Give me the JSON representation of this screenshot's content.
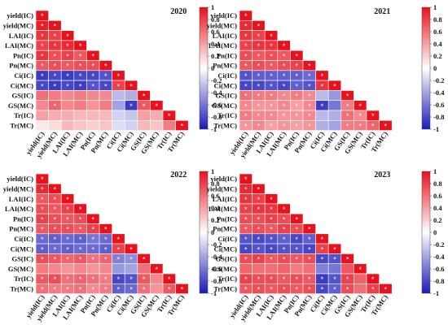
{
  "chart_data": [
    {
      "type": "heatmap",
      "title": "2020",
      "labels": [
        "yield(IC)",
        "yield(MC)",
        "LAI(IC)",
        "LAI(MC)",
        "Pn(IC)",
        "Pn(MC)",
        "Ci(IC)",
        "Ci(MC)",
        "GS(IC)",
        "GS(MC)",
        "Tr(IC)",
        "Tr(MC)"
      ],
      "values": [
        [
          1
        ],
        [
          0.95,
          1
        ],
        [
          0.85,
          0.8,
          1
        ],
        [
          0.8,
          0.85,
          0.9,
          1
        ],
        [
          0.85,
          0.75,
          0.8,
          0.7,
          1
        ],
        [
          0.7,
          0.75,
          0.7,
          0.75,
          0.75,
          1
        ],
        [
          -0.85,
          -0.8,
          -0.85,
          -0.8,
          -0.8,
          -0.75,
          1
        ],
        [
          -0.8,
          -0.85,
          -0.8,
          -0.85,
          -0.75,
          -0.8,
          0.8,
          1
        ],
        [
          0.6,
          0.55,
          0.5,
          0.55,
          0.5,
          0.5,
          -0.3,
          -0.35,
          1
        ],
        [
          0.5,
          0.65,
          0.5,
          0.55,
          0.45,
          0.55,
          -0.4,
          -0.85,
          0.7,
          1
        ],
        [
          0.4,
          0.35,
          0.35,
          0.3,
          0.3,
          0.3,
          -0.2,
          -0.25,
          0.4,
          0.35,
          1
        ],
        [
          0.1,
          0.15,
          0.3,
          0.25,
          0.2,
          0.25,
          -0.15,
          -0.2,
          0.3,
          0.25,
          0.55,
          1
        ]
      ],
      "significant": [
        [
          1
        ],
        [
          1,
          1
        ],
        [
          1,
          1,
          1
        ],
        [
          1,
          1,
          1,
          1
        ],
        [
          1,
          1,
          1,
          1,
          1
        ],
        [
          1,
          1,
          1,
          1,
          1,
          1
        ],
        [
          1,
          1,
          1,
          1,
          1,
          1,
          1
        ],
        [
          1,
          1,
          1,
          1,
          1,
          1,
          1,
          1
        ],
        [
          0,
          0,
          0,
          0,
          0,
          0,
          0,
          0,
          1
        ],
        [
          0,
          1,
          0,
          0,
          0,
          0,
          0,
          1,
          1,
          1
        ],
        [
          0,
          0,
          0,
          0,
          0,
          0,
          0,
          0,
          0,
          0,
          1
        ],
        [
          0,
          0,
          0,
          0,
          0,
          0,
          0,
          0,
          0,
          0,
          0,
          1
        ]
      ],
      "colorbar": {
        "min": -1,
        "max": 1
      }
    },
    {
      "type": "heatmap",
      "title": "2021",
      "labels": [
        "yield(IC)",
        "yield(MC)",
        "LAI(IC)",
        "LAI(MC)",
        "Pn(IC)",
        "Pn(MC)",
        "Ci(IC)",
        "Ci(MC)",
        "GS(IC)",
        "GS(MC)",
        "Tr(IC)",
        "Tr(MC)"
      ],
      "values": [
        [
          1
        ],
        [
          0.9,
          1
        ],
        [
          0.85,
          0.8,
          1
        ],
        [
          0.8,
          0.85,
          0.85,
          1
        ],
        [
          0.75,
          0.7,
          0.75,
          0.7,
          1
        ],
        [
          0.7,
          0.75,
          0.7,
          0.75,
          0.8,
          1
        ],
        [
          -0.75,
          -0.7,
          -0.7,
          -0.7,
          -0.7,
          -0.65,
          1
        ],
        [
          -0.8,
          -0.8,
          -0.75,
          -0.8,
          -0.7,
          -0.75,
          0.85,
          1
        ],
        [
          0.6,
          0.55,
          0.55,
          0.5,
          0.55,
          0.5,
          -0.3,
          -0.45,
          1
        ],
        [
          0.5,
          0.45,
          0.45,
          0.5,
          0.4,
          0.5,
          -0.85,
          -0.6,
          0.55,
          1
        ],
        [
          0.55,
          0.5,
          0.5,
          0.45,
          0.45,
          0.5,
          -0.3,
          -0.35,
          0.6,
          0.5,
          1
        ],
        [
          0.45,
          0.5,
          0.4,
          0.45,
          0.4,
          0.45,
          -0.35,
          -0.4,
          0.55,
          0.55,
          0.65,
          1
        ]
      ],
      "significant": [
        [
          1
        ],
        [
          1,
          1
        ],
        [
          1,
          1,
          1
        ],
        [
          1,
          1,
          1,
          1
        ],
        [
          1,
          1,
          1,
          1,
          1
        ],
        [
          1,
          1,
          1,
          1,
          1,
          1
        ],
        [
          1,
          1,
          1,
          1,
          1,
          1,
          1
        ],
        [
          1,
          1,
          1,
          1,
          1,
          1,
          1,
          1
        ],
        [
          1,
          1,
          1,
          1,
          1,
          1,
          0,
          0,
          1
        ],
        [
          1,
          1,
          1,
          1,
          1,
          1,
          1,
          0,
          1,
          1
        ],
        [
          1,
          1,
          1,
          1,
          1,
          1,
          0,
          0,
          1,
          1,
          1
        ],
        [
          1,
          1,
          1,
          1,
          1,
          1,
          0,
          0,
          1,
          1,
          1,
          1
        ]
      ],
      "colorbar": {
        "min": -1,
        "max": 1
      }
    },
    {
      "type": "heatmap",
      "title": "2022",
      "labels": [
        "yield(IC)",
        "yield(MC)",
        "LAI(IC)",
        "LAI(MC)",
        "Pn(IC)",
        "Pn(MC)",
        "Ci(IC)",
        "Ci(MC)",
        "GS(IC)",
        "GS(MC)",
        "Tr(IC)",
        "Tr(MC)"
      ],
      "values": [
        [
          1
        ],
        [
          0.9,
          1
        ],
        [
          0.7,
          0.75,
          1
        ],
        [
          0.75,
          0.7,
          0.8,
          1
        ],
        [
          0.8,
          0.75,
          0.7,
          0.75,
          1
        ],
        [
          0.7,
          0.75,
          0.75,
          0.7,
          0.8,
          1
        ],
        [
          -0.65,
          -0.7,
          -0.65,
          -0.7,
          -0.6,
          -0.65,
          1
        ],
        [
          -0.7,
          -0.65,
          -0.7,
          -0.65,
          -0.65,
          -0.7,
          0.8,
          1
        ],
        [
          0.75,
          0.7,
          0.65,
          0.7,
          0.6,
          0.65,
          -0.55,
          -0.5,
          1
        ],
        [
          0.55,
          0.5,
          0.45,
          0.5,
          0.45,
          0.5,
          -0.45,
          -0.4,
          0.6,
          1
        ],
        [
          0.7,
          0.75,
          0.6,
          0.65,
          0.6,
          0.55,
          -0.8,
          -0.75,
          0.7,
          0.5,
          1
        ],
        [
          0.6,
          0.55,
          0.55,
          0.6,
          0.5,
          0.55,
          -0.7,
          -0.65,
          0.6,
          0.45,
          0.7,
          1
        ]
      ],
      "significant": [
        [
          1
        ],
        [
          1,
          1
        ],
        [
          1,
          1,
          1
        ],
        [
          1,
          1,
          1,
          1
        ],
        [
          1,
          1,
          1,
          1,
          1
        ],
        [
          1,
          1,
          1,
          1,
          1,
          1
        ],
        [
          1,
          1,
          1,
          1,
          1,
          1,
          1
        ],
        [
          1,
          1,
          1,
          1,
          1,
          1,
          1,
          1
        ],
        [
          1,
          1,
          1,
          1,
          1,
          1,
          1,
          1,
          1
        ],
        [
          0,
          0,
          0,
          0,
          0,
          0,
          0,
          0,
          0,
          1
        ],
        [
          1,
          1,
          1,
          1,
          1,
          1,
          1,
          1,
          1,
          0,
          1
        ],
        [
          1,
          1,
          1,
          1,
          1,
          1,
          1,
          1,
          1,
          0,
          1,
          1
        ]
      ],
      "colorbar": {
        "min": -1,
        "max": 1
      }
    },
    {
      "type": "heatmap",
      "title": "2023",
      "labels": [
        "yield(IC)",
        "yield(MC)",
        "LAI(IC)",
        "LAI(MC)",
        "Pn(IC)",
        "Pn(MC)",
        "Ci(IC)",
        "Ci(MC)",
        "GS(IC)",
        "GS(MC)",
        "Tr(IC)",
        "Tr(MC)"
      ],
      "values": [
        [
          1
        ],
        [
          0.9,
          1
        ],
        [
          0.85,
          0.8,
          1
        ],
        [
          0.8,
          0.85,
          0.85,
          1
        ],
        [
          0.75,
          0.75,
          0.8,
          0.75,
          1
        ],
        [
          0.7,
          0.75,
          0.7,
          0.8,
          0.75,
          1
        ],
        [
          -0.75,
          -0.8,
          -0.75,
          -0.7,
          -0.8,
          -0.7,
          1
        ],
        [
          -0.8,
          -0.75,
          -0.8,
          -0.75,
          -0.75,
          -0.8,
          0.8,
          1
        ],
        [
          0.75,
          0.8,
          0.7,
          0.75,
          0.7,
          0.75,
          -0.8,
          -0.75,
          1
        ],
        [
          0.65,
          0.6,
          0.6,
          0.65,
          0.55,
          0.6,
          -0.55,
          -0.6,
          0.7,
          1
        ],
        [
          0.8,
          0.75,
          0.75,
          0.7,
          0.75,
          0.7,
          -0.85,
          -0.75,
          0.8,
          0.65,
          1
        ],
        [
          0.7,
          0.75,
          0.7,
          0.75,
          0.7,
          0.75,
          -0.8,
          -0.7,
          0.75,
          0.6,
          0.8,
          1
        ]
      ],
      "significant": [
        [
          1
        ],
        [
          1,
          1
        ],
        [
          1,
          1,
          1
        ],
        [
          1,
          1,
          1,
          1
        ],
        [
          1,
          1,
          1,
          1,
          1
        ],
        [
          1,
          1,
          1,
          1,
          1,
          1
        ],
        [
          1,
          1,
          1,
          1,
          1,
          1,
          1
        ],
        [
          1,
          1,
          1,
          1,
          1,
          1,
          1,
          1
        ],
        [
          1,
          1,
          1,
          1,
          1,
          1,
          1,
          1,
          1
        ],
        [
          0,
          0,
          0,
          0,
          0,
          0,
          0,
          0,
          0,
          1
        ],
        [
          1,
          1,
          1,
          1,
          1,
          1,
          1,
          1,
          1,
          0,
          1
        ],
        [
          1,
          1,
          1,
          1,
          1,
          1,
          1,
          1,
          1,
          0,
          1,
          1
        ]
      ],
      "colorbar": {
        "min": -1,
        "max": 1
      }
    }
  ],
  "colorbar_ticks": [
    "1",
    "0.8",
    "0.6",
    "0.4",
    "0.2",
    "0",
    "-0.2",
    "-0.4",
    "-0.6",
    "-0.8",
    "-1"
  ],
  "significance_marker": "*",
  "colors": {
    "neg": "#1a1ab8",
    "mid": "#ffffff",
    "pos": "#e8111c"
  }
}
